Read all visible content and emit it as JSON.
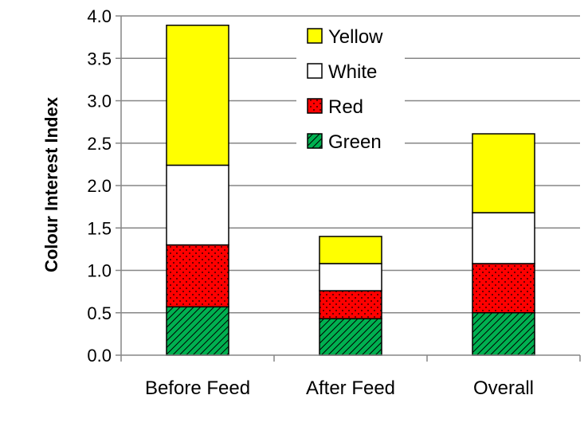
{
  "chart_data": {
    "type": "bar",
    "stacked": true,
    "title": "",
    "xlabel": "",
    "ylabel": "Colour Interest Index",
    "ylim": [
      0,
      4.0
    ],
    "yticks": [
      "0.0",
      "0.5",
      "1.0",
      "1.5",
      "2.0",
      "2.5",
      "3.0",
      "3.5",
      "4.0"
    ],
    "grid": true,
    "legend_position": "top-center",
    "categories": [
      "Before Feed",
      "After Feed",
      "Overall"
    ],
    "series": [
      {
        "name": "Green",
        "values": [
          0.57,
          0.43,
          0.5
        ],
        "color": "#00b050",
        "pattern": "diagonal-hatch"
      },
      {
        "name": "Red",
        "values": [
          0.73,
          0.33,
          0.58
        ],
        "color": "#ff0000",
        "pattern": "dots"
      },
      {
        "name": "White",
        "values": [
          0.94,
          0.32,
          0.6
        ],
        "color": "#ffffff",
        "pattern": "none"
      },
      {
        "name": "Yellow",
        "values": [
          1.65,
          0.32,
          0.93
        ],
        "color": "#ffff00",
        "pattern": "none"
      }
    ],
    "legend_order": [
      "Yellow",
      "White",
      "Red",
      "Green"
    ]
  }
}
